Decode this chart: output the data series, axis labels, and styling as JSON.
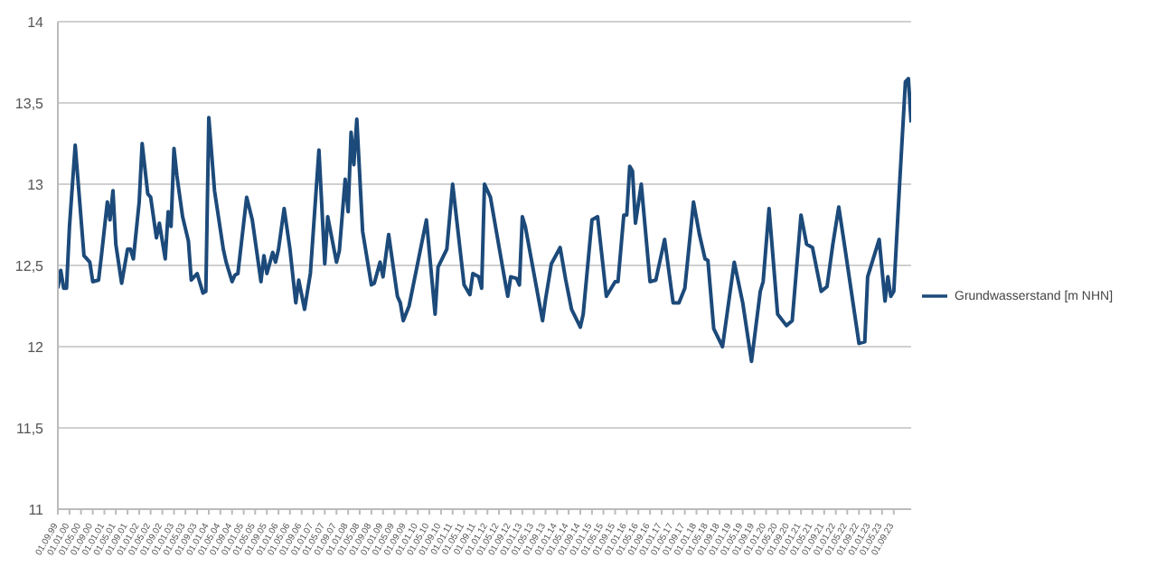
{
  "chart_data": {
    "type": "line",
    "legend": "right",
    "grid": "y",
    "marker": "none",
    "line_style": "solid",
    "xlim": [
      "1999-09",
      "2024-03"
    ],
    "xticks": [
      {
        "value": "1999-09",
        "label": "01.09.99"
      },
      {
        "value": "2000-01",
        "label": "01.01.00"
      },
      {
        "value": "2000-05",
        "label": "01.05.00"
      },
      {
        "value": "2000-09",
        "label": "01.09.00"
      },
      {
        "value": "2001-01",
        "label": "01.01.01"
      },
      {
        "value": "2001-05",
        "label": "01.05.01"
      },
      {
        "value": "2001-09",
        "label": "01.09.01"
      },
      {
        "value": "2002-01",
        "label": "01.01.02"
      },
      {
        "value": "2002-05",
        "label": "01.05.02"
      },
      {
        "value": "2002-09",
        "label": "01.09.02"
      },
      {
        "value": "2003-01",
        "label": "01.01.03"
      },
      {
        "value": "2003-05",
        "label": "01.05.03"
      },
      {
        "value": "2003-09",
        "label": "01.09.03"
      },
      {
        "value": "2004-01",
        "label": "01.01.04"
      },
      {
        "value": "2004-05",
        "label": "01.05.04"
      },
      {
        "value": "2004-09",
        "label": "01.09.04"
      },
      {
        "value": "2005-01",
        "label": "01.01.05"
      },
      {
        "value": "2005-05",
        "label": "01.05.05"
      },
      {
        "value": "2005-09",
        "label": "01.09.05"
      },
      {
        "value": "2006-01",
        "label": "01.01.06"
      },
      {
        "value": "2006-05",
        "label": "01.05.06"
      },
      {
        "value": "2006-09",
        "label": "01.09.06"
      },
      {
        "value": "2007-01",
        "label": "01.01.07"
      },
      {
        "value": "2007-05",
        "label": "01.05.07"
      },
      {
        "value": "2007-09",
        "label": "01.09.07"
      },
      {
        "value": "2008-01",
        "label": "01.01.08"
      },
      {
        "value": "2008-05",
        "label": "01.05.08"
      },
      {
        "value": "2008-09",
        "label": "01.09.08"
      },
      {
        "value": "2009-01",
        "label": "01.01.09"
      },
      {
        "value": "2009-05",
        "label": "01.05.09"
      },
      {
        "value": "2009-09",
        "label": "01.09.09"
      },
      {
        "value": "2010-01",
        "label": "01.01.10"
      },
      {
        "value": "2010-05",
        "label": "01.05.10"
      },
      {
        "value": "2010-09",
        "label": "01.09.10"
      },
      {
        "value": "2011-01",
        "label": "01.01.11"
      },
      {
        "value": "2011-05",
        "label": "01.05.11"
      },
      {
        "value": "2011-09",
        "label": "01.09.11"
      },
      {
        "value": "2012-01",
        "label": "01.01.12"
      },
      {
        "value": "2012-05",
        "label": "01.05.12"
      },
      {
        "value": "2012-09",
        "label": "01.09.12"
      },
      {
        "value": "2013-01",
        "label": "01.01.13"
      },
      {
        "value": "2013-05",
        "label": "01.05.13"
      },
      {
        "value": "2013-09",
        "label": "01.09.13"
      },
      {
        "value": "2014-01",
        "label": "01.01.14"
      },
      {
        "value": "2014-05",
        "label": "01.05.14"
      },
      {
        "value": "2014-09",
        "label": "01.09.14"
      },
      {
        "value": "2015-01",
        "label": "01.01.15"
      },
      {
        "value": "2015-05",
        "label": "01.05.15"
      },
      {
        "value": "2015-09",
        "label": "01.09.15"
      },
      {
        "value": "2016-01",
        "label": "01.01.16"
      },
      {
        "value": "2016-05",
        "label": "01.05.16"
      },
      {
        "value": "2016-09",
        "label": "01.09.16"
      },
      {
        "value": "2017-01",
        "label": "01.01.17"
      },
      {
        "value": "2017-05",
        "label": "01.05.17"
      },
      {
        "value": "2017-09",
        "label": "01.09.17"
      },
      {
        "value": "2018-01",
        "label": "01.01.18"
      },
      {
        "value": "2018-05",
        "label": "01.05.18"
      },
      {
        "value": "2018-09",
        "label": "01.09.18"
      },
      {
        "value": "2019-01",
        "label": "01.01.19"
      },
      {
        "value": "2019-05",
        "label": "01.05.19"
      },
      {
        "value": "2019-09",
        "label": "01.09.19"
      },
      {
        "value": "2020-01",
        "label": "01.01.20"
      },
      {
        "value": "2020-05",
        "label": "01.05.20"
      },
      {
        "value": "2020-09",
        "label": "01.09.20"
      },
      {
        "value": "2021-01",
        "label": "01.01.21"
      },
      {
        "value": "2021-05",
        "label": "01.05.21"
      },
      {
        "value": "2021-09",
        "label": "01.09.21"
      },
      {
        "value": "2022-01",
        "label": "01.01.22"
      },
      {
        "value": "2022-05",
        "label": "01.05.22"
      },
      {
        "value": "2022-09",
        "label": "01.09.22"
      },
      {
        "value": "2023-01",
        "label": "01.01.23"
      },
      {
        "value": "2023-05",
        "label": "01.05.23"
      },
      {
        "value": "2023-09",
        "label": "01.09.23"
      }
    ],
    "ylim": [
      11,
      14
    ],
    "yticks": [
      11,
      {
        "value": 11.5,
        "label": "11,5"
      },
      12,
      {
        "value": 12.5,
        "label": "12,5"
      },
      13,
      {
        "value": 13.5,
        "label": "13,5"
      },
      14
    ],
    "series": [
      {
        "name": "Grundwasserstand [m NHN]",
        "color": "#1c4a7a",
        "x": [
          "1999-09",
          "1999-10",
          "1999-11",
          "1999-12",
          "2000-01",
          "2000-03",
          "2000-06",
          "2000-08",
          "2000-09",
          "2000-11",
          "2000-12",
          "2001-02",
          "2001-03",
          "2001-04",
          "2001-05",
          "2001-07",
          "2001-09",
          "2001-10",
          "2001-11",
          "2002-01",
          "2002-02",
          "2002-04",
          "2002-05",
          "2002-07",
          "2002-08",
          "2002-10",
          "2002-11",
          "2002-12",
          "2003-01",
          "2003-02",
          "2003-04",
          "2003-06",
          "2003-07",
          "2003-09",
          "2003-11",
          "2003-12",
          "2004-01",
          "2004-03",
          "2004-06",
          "2004-07",
          "2004-09",
          "2004-10",
          "2004-11",
          "2005-02",
          "2005-04",
          "2005-07",
          "2005-08",
          "2005-09",
          "2005-11",
          "2005-12",
          "2006-01",
          "2006-03",
          "2006-05",
          "2006-07",
          "2006-08",
          "2006-10",
          "2006-12",
          "2007-03",
          "2007-05",
          "2007-06",
          "2007-09",
          "2007-10",
          "2007-12",
          "2008-01",
          "2008-02",
          "2008-03",
          "2008-04",
          "2008-06",
          "2008-09",
          "2008-10",
          "2008-12",
          "2009-01",
          "2009-03",
          "2009-06",
          "2009-07",
          "2009-08",
          "2009-10",
          "2010-04",
          "2010-07",
          "2010-08",
          "2010-11",
          "2011-01",
          "2011-05",
          "2011-07",
          "2011-08",
          "2011-10",
          "2011-11",
          "2011-12",
          "2012-02",
          "2012-07",
          "2012-08",
          "2012-09",
          "2012-11",
          "2012-12",
          "2013-01",
          "2013-02",
          "2013-08",
          "2013-09",
          "2013-11",
          "2014-02",
          "2014-04",
          "2014-06",
          "2014-09",
          "2014-10",
          "2015-01",
          "2015-03",
          "2015-06",
          "2015-09",
          "2015-10",
          "2015-12",
          "2016-01",
          "2016-02",
          "2016-03",
          "2016-04",
          "2016-06",
          "2016-09",
          "2016-11",
          "2017-02",
          "2017-05",
          "2017-07",
          "2017-09",
          "2017-12",
          "2018-02",
          "2018-04",
          "2018-05",
          "2018-07",
          "2018-10",
          "2019-02",
          "2019-05",
          "2019-08",
          "2019-11",
          "2019-12",
          "2020-02",
          "2020-05",
          "2020-08",
          "2020-10",
          "2021-01",
          "2021-03",
          "2021-05",
          "2021-08",
          "2021-10",
          "2021-12",
          "2022-02",
          "2022-04",
          "2022-09",
          "2022-11",
          "2022-12",
          "2023-04",
          "2023-06",
          "2023-07",
          "2023-08",
          "2023-09",
          "2023-11",
          "2024-01",
          "2024-02",
          "2024-03"
        ],
        "values": [
          12.36,
          12.47,
          12.36,
          12.36,
          12.74,
          13.24,
          12.56,
          12.52,
          12.4,
          12.41,
          12.56,
          12.89,
          12.78,
          12.96,
          12.63,
          12.39,
          12.6,
          12.6,
          12.54,
          12.89,
          13.25,
          12.94,
          12.92,
          12.67,
          12.76,
          12.54,
          12.83,
          12.74,
          13.22,
          13.05,
          12.8,
          12.65,
          12.41,
          12.45,
          12.33,
          12.34,
          13.41,
          12.96,
          12.6,
          12.52,
          12.4,
          12.44,
          12.45,
          12.92,
          12.78,
          12.4,
          12.56,
          12.45,
          12.58,
          12.52,
          12.6,
          12.85,
          12.6,
          12.27,
          12.41,
          12.23,
          12.45,
          13.21,
          12.51,
          12.8,
          12.52,
          12.59,
          13.03,
          12.83,
          13.32,
          13.12,
          13.4,
          12.71,
          12.38,
          12.39,
          12.52,
          12.43,
          12.69,
          12.31,
          12.27,
          12.16,
          12.25,
          12.78,
          12.2,
          12.49,
          12.6,
          13.0,
          12.38,
          12.32,
          12.45,
          12.43,
          12.36,
          13.0,
          12.92,
          12.41,
          12.31,
          12.43,
          12.42,
          12.38,
          12.8,
          12.74,
          12.16,
          12.29,
          12.51,
          12.61,
          12.41,
          12.23,
          12.12,
          12.2,
          12.78,
          12.8,
          12.31,
          12.4,
          12.4,
          12.81,
          12.81,
          13.11,
          13.08,
          12.76,
          13.0,
          12.4,
          12.41,
          12.66,
          12.27,
          12.27,
          12.36,
          12.89,
          12.69,
          12.54,
          12.53,
          12.11,
          12.0,
          12.52,
          12.27,
          11.91,
          12.34,
          12.4,
          12.85,
          12.2,
          12.13,
          12.16,
          12.81,
          12.63,
          12.61,
          12.34,
          12.37,
          12.63,
          12.86,
          12.63,
          12.02,
          12.03,
          12.43,
          12.66,
          12.28,
          12.43,
          12.31,
          12.34,
          13.0,
          13.63,
          13.65,
          13.38
        ]
      }
    ]
  }
}
